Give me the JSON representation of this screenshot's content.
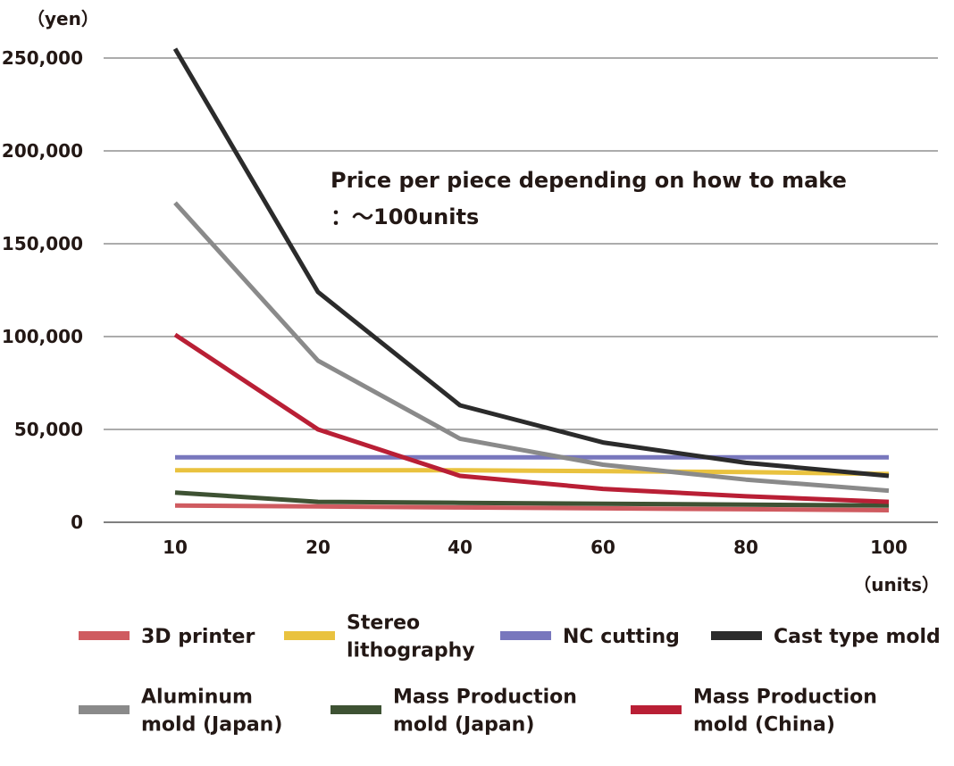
{
  "chart_data": {
    "type": "line",
    "title": "Price per piece depending on how to make",
    "subtitle": "：～100units",
    "y_unit": "（yen）",
    "x_unit": "（units）",
    "categories": [
      "10",
      "20",
      "40",
      "60",
      "80",
      "100"
    ],
    "ylim": [
      0,
      250000
    ],
    "y_ticks": [
      0,
      50000,
      100000,
      150000,
      200000,
      250000
    ],
    "y_tick_labels": [
      "0",
      "50,000",
      "100,000",
      "150,000",
      "200,000",
      "250,000"
    ],
    "grid": true,
    "legend_position": "bottom",
    "series": [
      {
        "name": "3D printer",
        "color": "#cf5b60",
        "values": [
          9000,
          8500,
          8000,
          7500,
          7000,
          6500
        ]
      },
      {
        "name": "Stereo lithography",
        "color": "#e9c23f",
        "values": [
          28000,
          28000,
          28000,
          27500,
          27000,
          26000
        ]
      },
      {
        "name": "NC cutting",
        "color": "#7877bd",
        "values": [
          35000,
          35000,
          35000,
          35000,
          35000,
          35000
        ]
      },
      {
        "name": "Cast type mold",
        "color": "#2b2b2b",
        "values": [
          255000,
          124000,
          63000,
          43000,
          32000,
          25000
        ]
      },
      {
        "name": "Aluminum mold (Japan)",
        "color": "#8a8a8a",
        "values": [
          172000,
          87000,
          45000,
          31000,
          23000,
          17000
        ]
      },
      {
        "name": "Mass Production mold (Japan)",
        "color": "#3e5233",
        "values": [
          16000,
          11000,
          10500,
          10000,
          9500,
          9000
        ]
      },
      {
        "name": "Mass Production mold (China)",
        "color": "#b91f35",
        "values": [
          101000,
          50000,
          25000,
          18000,
          14000,
          11000
        ]
      }
    ],
    "legend": [
      {
        "lines": [
          "3D printer"
        ],
        "color": "#cf5b60"
      },
      {
        "lines": [
          "Stereo",
          "lithography"
        ],
        "color": "#e9c23f"
      },
      {
        "lines": [
          "NC cutting"
        ],
        "color": "#7877bd"
      },
      {
        "lines": [
          "Cast type mold"
        ],
        "color": "#2b2b2b"
      },
      {
        "lines": [
          "Aluminum",
          "mold (Japan)"
        ],
        "color": "#8a8a8a"
      },
      {
        "lines": [
          "Mass Production",
          "mold (Japan)"
        ],
        "color": "#3e5233"
      },
      {
        "lines": [
          "Mass Production",
          "mold (China)"
        ],
        "color": "#b91f35"
      }
    ]
  }
}
